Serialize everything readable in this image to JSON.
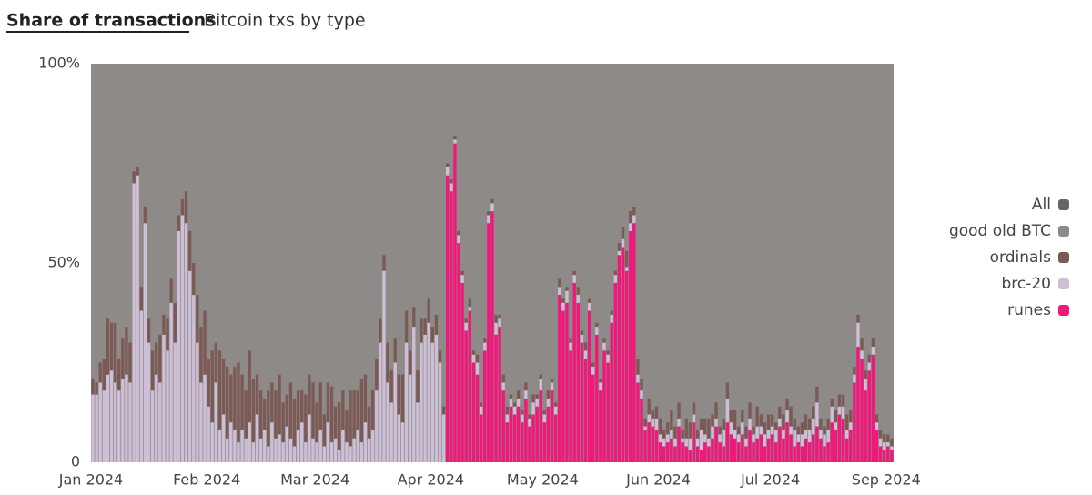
{
  "chart_data": {
    "type": "stacked-bar",
    "title": "Share of transactions",
    "subtitle": "Bitcoin txs by type",
    "legend_position": "right",
    "x": [
      0,
      1,
      2,
      3,
      4,
      5,
      6,
      7,
      8,
      9,
      10,
      11,
      12,
      13,
      14,
      15,
      16,
      17,
      18,
      19,
      20,
      21,
      22,
      23,
      24,
      25,
      26,
      27,
      28,
      29,
      30,
      31,
      32,
      33,
      34,
      35,
      36,
      37,
      38,
      39,
      40,
      41,
      42,
      43,
      44,
      45,
      46,
      47,
      48,
      49,
      50,
      51,
      52,
      53,
      54,
      55,
      56,
      57,
      58,
      59,
      60,
      61,
      62,
      63,
      64,
      65,
      66,
      67,
      68,
      69,
      70,
      71,
      72,
      73,
      74,
      75,
      76,
      77,
      78,
      79,
      80,
      81,
      82,
      83,
      84,
      85,
      86,
      87,
      88,
      89,
      90,
      91,
      92,
      93,
      94,
      95,
      96,
      97,
      98,
      99,
      100,
      101,
      102,
      103,
      104,
      105,
      106,
      107,
      108,
      109,
      110,
      111,
      112,
      113,
      114,
      115,
      116,
      117,
      118,
      119,
      120,
      121,
      122,
      123,
      124,
      125,
      126,
      127,
      128,
      129,
      130,
      131,
      132,
      133,
      134,
      135,
      136,
      137,
      138,
      139,
      140,
      141,
      142,
      143,
      144,
      145,
      146,
      147,
      148,
      149,
      150,
      151,
      152,
      153,
      154,
      155,
      156,
      157,
      158,
      159,
      160,
      161,
      162,
      163,
      164,
      165,
      166,
      167,
      168,
      169,
      170,
      171,
      172,
      173,
      174,
      175,
      176,
      177,
      178,
      179,
      180,
      181,
      182,
      183,
      184,
      185,
      186,
      187,
      188,
      189,
      190,
      191,
      192,
      193,
      194,
      195,
      196,
      197,
      198,
      199,
      200,
      201,
      202,
      203,
      204,
      205,
      206,
      207,
      208,
      209,
      210,
      211,
      212,
      213,
      214
    ],
    "xlim": [
      0,
      215
    ],
    "xticks": [
      {
        "value": 0,
        "label": "Jan 2024"
      },
      {
        "value": 31,
        "label": "Feb 2024"
      },
      {
        "value": 60,
        "label": "Mar 2024"
      },
      {
        "value": 91,
        "label": "Apr 2024"
      },
      {
        "value": 121,
        "label": "May 2024"
      },
      {
        "value": 152,
        "label": "Jun 2024"
      },
      {
        "value": 182,
        "label": "Jul 2024"
      },
      {
        "value": 213,
        "label": "Sep 2024"
      }
    ],
    "ylim": [
      0,
      100
    ],
    "yticks": [
      0,
      {
        "value": 50,
        "label": "50%"
      },
      {
        "value": 100,
        "label": "100%"
      }
    ],
    "series": [
      {
        "name": "All",
        "color": "#666666"
      },
      {
        "name": "good old BTC",
        "color": "#8e8a87"
      },
      {
        "name": "ordinals",
        "color": "#7b5a55",
        "values": [
          4,
          3,
          5,
          8,
          14,
          12,
          15,
          8,
          10,
          12,
          10,
          3,
          2,
          6,
          4,
          6,
          10,
          8,
          12,
          5,
          8,
          6,
          10,
          4,
          4,
          8,
          10,
          8,
          12,
          14,
          16,
          12,
          18,
          10,
          20,
          14,
          18,
          12,
          16,
          20,
          14,
          12,
          18,
          16,
          10,
          12,
          8,
          14,
          10,
          12,
          15,
          10,
          8,
          14,
          12,
          10,
          8,
          12,
          10,
          14,
          10,
          12,
          8,
          10,
          14,
          8,
          12,
          10,
          8,
          14,
          12,
          10,
          16,
          12,
          8,
          10,
          8,
          6,
          4,
          10,
          8,
          6,
          10,
          12,
          8,
          6,
          5,
          8,
          6,
          4,
          6,
          4,
          5,
          3,
          2,
          1,
          1,
          1,
          1,
          1,
          1,
          2,
          1,
          2,
          1,
          1,
          1,
          1,
          2,
          1,
          2,
          2,
          1,
          1,
          2,
          1,
          2,
          1,
          2,
          1,
          1,
          1,
          2,
          1,
          1,
          2,
          1,
          1,
          1,
          1,
          2,
          1,
          2,
          1,
          1,
          1,
          1,
          1,
          1,
          1,
          1,
          2,
          3,
          4,
          3,
          2,
          4,
          3,
          2,
          4,
          2,
          3,
          4,
          2,
          3,
          5,
          3,
          4,
          2,
          5,
          4,
          3,
          2,
          3,
          4,
          5,
          3,
          4,
          2,
          3,
          4,
          3,
          5,
          2,
          3,
          3,
          4,
          2,
          5,
          3,
          3,
          4,
          3,
          2,
          3,
          4,
          3,
          5,
          3,
          2,
          3,
          4,
          3,
          3,
          4,
          3,
          2,
          3,
          2,
          3,
          3,
          3,
          4,
          3,
          2,
          2,
          3,
          2,
          2,
          2,
          2,
          2,
          2,
          2,
          2
        ]
      },
      {
        "name": "brc-20",
        "color": "#cdbfd6",
        "values": [
          17,
          17,
          20,
          18,
          22,
          23,
          20,
          18,
          21,
          22,
          20,
          70,
          72,
          38,
          60,
          30,
          18,
          22,
          20,
          32,
          28,
          40,
          30,
          58,
          62,
          60,
          48,
          42,
          30,
          20,
          22,
          14,
          10,
          20,
          8,
          12,
          6,
          10,
          8,
          5,
          8,
          6,
          10,
          5,
          12,
          6,
          8,
          4,
          10,
          6,
          7,
          5,
          9,
          6,
          4,
          8,
          10,
          5,
          12,
          6,
          5,
          8,
          4,
          10,
          5,
          6,
          3,
          8,
          5,
          4,
          6,
          8,
          5,
          10,
          6,
          8,
          18,
          30,
          48,
          20,
          15,
          25,
          12,
          10,
          30,
          22,
          34,
          15,
          30,
          32,
          35,
          30,
          32,
          25,
          12,
          2,
          2,
          1,
          2,
          2,
          2,
          1,
          2,
          3,
          2,
          2,
          2,
          2,
          3,
          2,
          2,
          2,
          2,
          2,
          2,
          2,
          2,
          2,
          3,
          2,
          3,
          2,
          2,
          2,
          2,
          2,
          2,
          3,
          2,
          2,
          2,
          2,
          2,
          2,
          2,
          2,
          2,
          2,
          2,
          2,
          2,
          1,
          2,
          1,
          2,
          2,
          2,
          2,
          1,
          2,
          2,
          3,
          2,
          2,
          2,
          2,
          2,
          2,
          1,
          2,
          3,
          2,
          2,
          5,
          2,
          2,
          3,
          2,
          2,
          4,
          6,
          3,
          2,
          2,
          3,
          2,
          3,
          2,
          3,
          2,
          3,
          2,
          2,
          3,
          2,
          2,
          3,
          2,
          4,
          2,
          3,
          2,
          3,
          4,
          6,
          2,
          3,
          3,
          4,
          2,
          2,
          3,
          2,
          2,
          2,
          6,
          2,
          3,
          2,
          2,
          2,
          2,
          2,
          1,
          1
        ]
      },
      {
        "name": "runes",
        "color": "#f0187a",
        "values": [
          0,
          0,
          0,
          0,
          0,
          0,
          0,
          0,
          0,
          0,
          0,
          0,
          0,
          0,
          0,
          0,
          0,
          0,
          0,
          0,
          0,
          0,
          0,
          0,
          0,
          0,
          0,
          0,
          0,
          0,
          0,
          0,
          0,
          0,
          0,
          0,
          0,
          0,
          0,
          0,
          0,
          0,
          0,
          0,
          0,
          0,
          0,
          0,
          0,
          0,
          0,
          0,
          0,
          0,
          0,
          0,
          0,
          0,
          0,
          0,
          0,
          0,
          0,
          0,
          0,
          0,
          0,
          0,
          0,
          0,
          0,
          0,
          0,
          0,
          0,
          0,
          0,
          0,
          0,
          0,
          0,
          0,
          0,
          0,
          0,
          0,
          0,
          0,
          0,
          0,
          0,
          0,
          0,
          0,
          0,
          72,
          68,
          80,
          55,
          45,
          33,
          38,
          25,
          22,
          12,
          28,
          60,
          63,
          32,
          34,
          18,
          10,
          14,
          12,
          14,
          10,
          16,
          9,
          12,
          14,
          18,
          10,
          14,
          18,
          12,
          42,
          38,
          40,
          28,
          45,
          40,
          30,
          26,
          38,
          22,
          32,
          18,
          28,
          25,
          35,
          45,
          52,
          54,
          48,
          58,
          60,
          20,
          16,
          8,
          10,
          9,
          8,
          5,
          4,
          5,
          6,
          4,
          9,
          5,
          4,
          3,
          10,
          4,
          3,
          5,
          4,
          6,
          9,
          5,
          4,
          10,
          7,
          6,
          5,
          7,
          4,
          8,
          5,
          6,
          7,
          4,
          6,
          7,
          5,
          9,
          6,
          10,
          7,
          4,
          5,
          4,
          6,
          5,
          7,
          9,
          6,
          4,
          5,
          10,
          8,
          12,
          11,
          6,
          8,
          20,
          29,
          26,
          18,
          23,
          27,
          8,
          4,
          3,
          4,
          3
        ]
      }
    ]
  }
}
